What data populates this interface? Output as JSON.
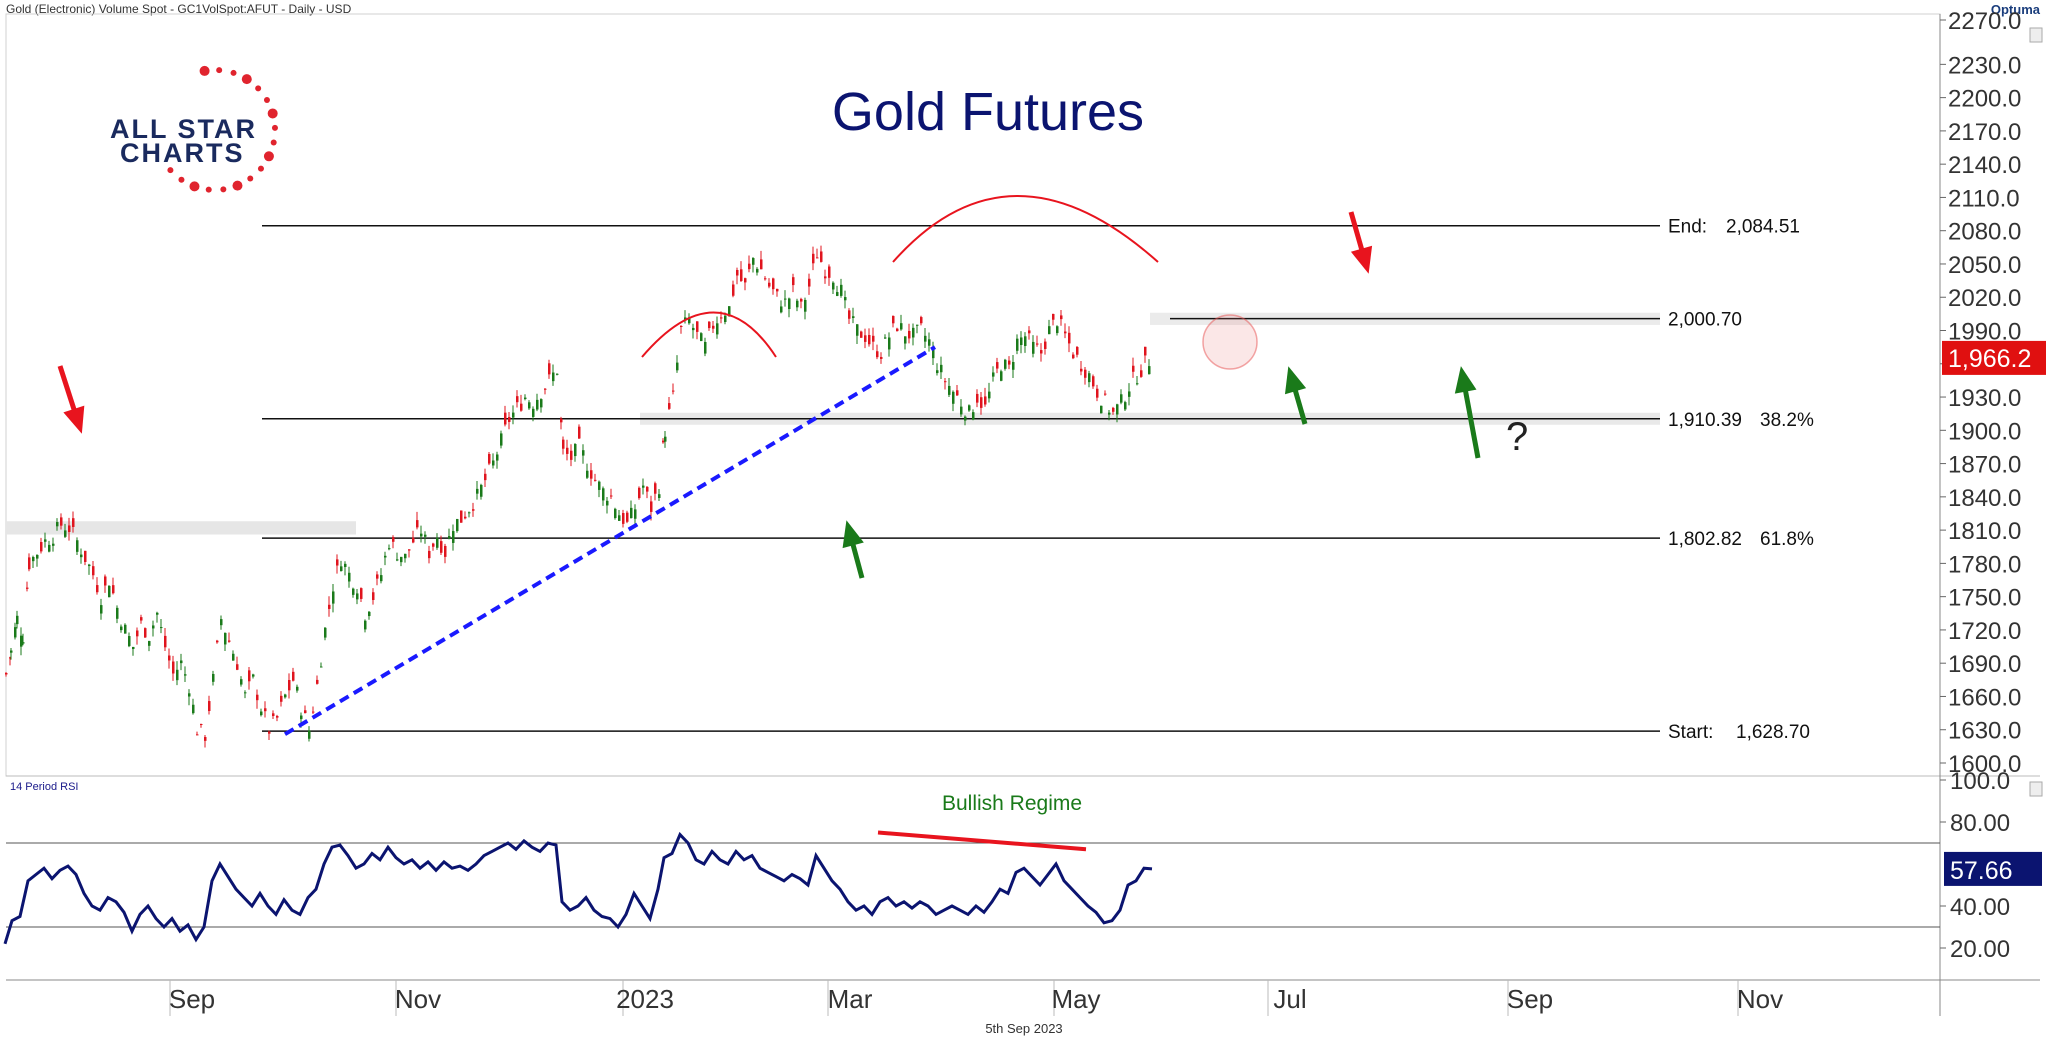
{
  "header": {
    "instrument": "Gold (Electronic) Volume Spot - GC1VolSpot:AFUT - Daily - USD",
    "brand": "Optuma"
  },
  "logo": {
    "line1": "ALL STAR",
    "line2": "CHARTS"
  },
  "footer": {
    "date": "5th Sep 2023"
  },
  "colors": {
    "up": "#1a7a1a",
    "down": "#e0141e",
    "navy": "#0b1470",
    "trend": "#1a1aff",
    "annot_red": "#e8141e",
    "annot_green": "#1a7a1a"
  },
  "chart_data": [
    {
      "type": "candlestick",
      "title": "Gold Futures",
      "ylim": [
        1600,
        2280
      ],
      "y_ticks": [
        "2270.0",
        "2230.0",
        "2200.0",
        "2170.0",
        "2140.0",
        "2110.0",
        "2080.0",
        "2050.0",
        "2020.0",
        "1990.0",
        "1960.0",
        "1930.0",
        "1900.0",
        "1870.0",
        "1840.0",
        "1810.0",
        "1780.0",
        "1750.0",
        "1720.0",
        "1690.0",
        "1660.0",
        "1630.0",
        "1600.0"
      ],
      "x_ticks": [
        "Sep",
        "Nov",
        "2023",
        "Mar",
        "May",
        "Jul",
        "Sep",
        "Nov"
      ],
      "last_price": "1,966.2",
      "fib_levels": [
        {
          "label": "End:",
          "value": "2,084.51",
          "price": 2084.51,
          "pct": ""
        },
        {
          "label": "",
          "value": "2,000.70",
          "price": 2000.7,
          "pct": ""
        },
        {
          "label": "",
          "value": "1,910.39",
          "price": 1910.39,
          "pct": "38.2%"
        },
        {
          "label": "",
          "value": "1,802.82",
          "price": 1802.82,
          "pct": "61.8%"
        },
        {
          "label": "Start:",
          "value": "1,628.70",
          "price": 1628.7,
          "pct": ""
        }
      ],
      "trend_line": {
        "from": [
          285,
          1626
        ],
        "to": [
          935,
          1975
        ]
      },
      "annotation_question": "?",
      "close_path": [
        [
          5,
          1680
        ],
        [
          10,
          1700
        ],
        [
          16,
          1730
        ],
        [
          22,
          1715
        ],
        [
          28,
          1780
        ],
        [
          36,
          1790
        ],
        [
          44,
          1800
        ],
        [
          52,
          1805
        ],
        [
          60,
          1815
        ],
        [
          68,
          1812
        ],
        [
          76,
          1800
        ],
        [
          84,
          1785
        ],
        [
          92,
          1770
        ],
        [
          100,
          1750
        ],
        [
          108,
          1765
        ],
        [
          116,
          1740
        ],
        [
          124,
          1720
        ],
        [
          132,
          1705
        ],
        [
          140,
          1725
        ],
        [
          148,
          1715
        ],
        [
          156,
          1735
        ],
        [
          164,
          1705
        ],
        [
          172,
          1680
        ],
        [
          180,
          1690
        ],
        [
          188,
          1670
        ],
        [
          196,
          1630
        ],
        [
          204,
          1625
        ],
        [
          212,
          1675
        ],
        [
          220,
          1730
        ],
        [
          228,
          1710
        ],
        [
          236,
          1690
        ],
        [
          244,
          1660
        ],
        [
          252,
          1675
        ],
        [
          260,
          1650
        ],
        [
          268,
          1630
        ],
        [
          276,
          1640
        ],
        [
          284,
          1660
        ],
        [
          292,
          1675
        ],
        [
          300,
          1650
        ],
        [
          308,
          1630
        ],
        [
          316,
          1670
        ],
        [
          324,
          1720
        ],
        [
          332,
          1760
        ],
        [
          340,
          1785
        ],
        [
          348,
          1770
        ],
        [
          356,
          1760
        ],
        [
          364,
          1735
        ],
        [
          372,
          1750
        ],
        [
          380,
          1770
        ],
        [
          388,
          1800
        ],
        [
          396,
          1790
        ],
        [
          404,
          1785
        ],
        [
          412,
          1800
        ],
        [
          420,
          1810
        ],
        [
          428,
          1790
        ],
        [
          436,
          1805
        ],
        [
          444,
          1790
        ],
        [
          452,
          1815
        ],
        [
          460,
          1820
        ],
        [
          468,
          1830
        ],
        [
          476,
          1840
        ],
        [
          484,
          1855
        ],
        [
          492,
          1870
        ],
        [
          500,
          1890
        ],
        [
          508,
          1910
        ],
        [
          516,
          1920
        ],
        [
          524,
          1930
        ],
        [
          532,
          1925
        ],
        [
          540,
          1935
        ],
        [
          548,
          1945
        ],
        [
          556,
          1955
        ],
        [
          562,
          1880
        ],
        [
          570,
          1875
        ],
        [
          578,
          1885
        ],
        [
          586,
          1870
        ],
        [
          594,
          1855
        ],
        [
          602,
          1845
        ],
        [
          610,
          1840
        ],
        [
          618,
          1825
        ],
        [
          626,
          1815
        ],
        [
          634,
          1830
        ],
        [
          642,
          1850
        ],
        [
          650,
          1830
        ],
        [
          658,
          1850
        ],
        [
          664,
          1900
        ],
        [
          672,
          1930
        ],
        [
          680,
          1990
        ],
        [
          688,
          2000
        ],
        [
          696,
          1985
        ],
        [
          704,
          1975
        ],
        [
          712,
          1995
        ],
        [
          720,
          2005
        ],
        [
          728,
          2010
        ],
        [
          736,
          2040
        ],
        [
          744,
          2030
        ],
        [
          752,
          2055
        ],
        [
          760,
          2045
        ],
        [
          768,
          2030
        ],
        [
          776,
          2020
        ],
        [
          784,
          2015
        ],
        [
          792,
          2025
        ],
        [
          800,
          2010
        ],
        [
          808,
          2030
        ],
        [
          816,
          2060
        ],
        [
          824,
          2045
        ],
        [
          832,
          2040
        ],
        [
          840,
          2025
        ],
        [
          848,
          2000
        ],
        [
          856,
          1990
        ],
        [
          864,
          1985
        ],
        [
          872,
          1975
        ],
        [
          880,
          1970
        ],
        [
          888,
          1985
        ],
        [
          896,
          1995
        ],
        [
          904,
          1988
        ],
        [
          912,
          1985
        ],
        [
          920,
          1990
        ],
        [
          928,
          1980
        ],
        [
          936,
          1960
        ],
        [
          944,
          1945
        ],
        [
          952,
          1935
        ],
        [
          960,
          1925
        ],
        [
          968,
          1915
        ],
        [
          976,
          1930
        ],
        [
          984,
          1920
        ],
        [
          992,
          1945
        ],
        [
          1000,
          1960
        ],
        [
          1008,
          1955
        ],
        [
          1016,
          1980
        ],
        [
          1024,
          1985
        ],
        [
          1032,
          1975
        ],
        [
          1040,
          1970
        ],
        [
          1048,
          1990
        ],
        [
          1056,
          2000
        ],
        [
          1064,
          1985
        ],
        [
          1072,
          1970
        ],
        [
          1080,
          1960
        ],
        [
          1088,
          1950
        ],
        [
          1096,
          1935
        ],
        [
          1104,
          1925
        ],
        [
          1112,
          1915
        ],
        [
          1120,
          1925
        ],
        [
          1128,
          1940
        ],
        [
          1136,
          1950
        ],
        [
          1144,
          1960
        ],
        [
          1152,
          1966
        ]
      ]
    },
    {
      "type": "line",
      "title": "14 Period RSI",
      "annotation": "Bullish Regime",
      "ylim": [
        10,
        100
      ],
      "y_ticks": [
        "100.0",
        "80.00",
        "40.00",
        "20.00"
      ],
      "bands": [
        70,
        30
      ],
      "last_value": "57.66",
      "values": [
        [
          5,
          22
        ],
        [
          12,
          33
        ],
        [
          20,
          35
        ],
        [
          28,
          52
        ],
        [
          36,
          55
        ],
        [
          44,
          58
        ],
        [
          52,
          53
        ],
        [
          60,
          57
        ],
        [
          68,
          59
        ],
        [
          76,
          55
        ],
        [
          84,
          46
        ],
        [
          92,
          40
        ],
        [
          100,
          38
        ],
        [
          108,
          44
        ],
        [
          116,
          42
        ],
        [
          124,
          37
        ],
        [
          132,
          28
        ],
        [
          140,
          36
        ],
        [
          148,
          40
        ],
        [
          156,
          34
        ],
        [
          164,
          30
        ],
        [
          172,
          34
        ],
        [
          180,
          28
        ],
        [
          188,
          31
        ],
        [
          196,
          24
        ],
        [
          204,
          30
        ],
        [
          212,
          52
        ],
        [
          220,
          60
        ],
        [
          228,
          54
        ],
        [
          236,
          48
        ],
        [
          244,
          44
        ],
        [
          252,
          40
        ],
        [
          260,
          46
        ],
        [
          268,
          40
        ],
        [
          276,
          36
        ],
        [
          284,
          43
        ],
        [
          292,
          38
        ],
        [
          300,
          36
        ],
        [
          308,
          44
        ],
        [
          316,
          48
        ],
        [
          324,
          60
        ],
        [
          332,
          68
        ],
        [
          340,
          69
        ],
        [
          348,
          64
        ],
        [
          356,
          58
        ],
        [
          364,
          60
        ],
        [
          372,
          65
        ],
        [
          380,
          62
        ],
        [
          388,
          68
        ],
        [
          396,
          63
        ],
        [
          404,
          60
        ],
        [
          412,
          62
        ],
        [
          420,
          58
        ],
        [
          428,
          61
        ],
        [
          436,
          57
        ],
        [
          444,
          61
        ],
        [
          452,
          58
        ],
        [
          460,
          59
        ],
        [
          468,
          57
        ],
        [
          476,
          60
        ],
        [
          484,
          64
        ],
        [
          492,
          66
        ],
        [
          500,
          68
        ],
        [
          508,
          70
        ],
        [
          516,
          67
        ],
        [
          524,
          71
        ],
        [
          532,
          68
        ],
        [
          540,
          66
        ],
        [
          548,
          70
        ],
        [
          556,
          69
        ],
        [
          562,
          42
        ],
        [
          570,
          38
        ],
        [
          578,
          40
        ],
        [
          586,
          44
        ],
        [
          594,
          38
        ],
        [
          602,
          35
        ],
        [
          610,
          34
        ],
        [
          618,
          30
        ],
        [
          626,
          36
        ],
        [
          634,
          46
        ],
        [
          642,
          40
        ],
        [
          650,
          34
        ],
        [
          658,
          48
        ],
        [
          664,
          63
        ],
        [
          672,
          65
        ],
        [
          680,
          74
        ],
        [
          688,
          70
        ],
        [
          696,
          62
        ],
        [
          704,
          60
        ],
        [
          712,
          66
        ],
        [
          720,
          62
        ],
        [
          728,
          60
        ],
        [
          736,
          66
        ],
        [
          744,
          62
        ],
        [
          752,
          64
        ],
        [
          760,
          58
        ],
        [
          768,
          56
        ],
        [
          776,
          54
        ],
        [
          784,
          52
        ],
        [
          792,
          55
        ],
        [
          800,
          53
        ],
        [
          808,
          50
        ],
        [
          816,
          64
        ],
        [
          824,
          58
        ],
        [
          832,
          52
        ],
        [
          840,
          48
        ],
        [
          848,
          42
        ],
        [
          856,
          38
        ],
        [
          864,
          40
        ],
        [
          872,
          36
        ],
        [
          880,
          42
        ],
        [
          888,
          44
        ],
        [
          896,
          40
        ],
        [
          904,
          42
        ],
        [
          912,
          39
        ],
        [
          920,
          42
        ],
        [
          928,
          40
        ],
        [
          936,
          36
        ],
        [
          944,
          38
        ],
        [
          952,
          40
        ],
        [
          960,
          38
        ],
        [
          968,
          36
        ],
        [
          976,
          40
        ],
        [
          984,
          37
        ],
        [
          992,
          42
        ],
        [
          1000,
          48
        ],
        [
          1008,
          46
        ],
        [
          1016,
          56
        ],
        [
          1024,
          58
        ],
        [
          1032,
          54
        ],
        [
          1040,
          50
        ],
        [
          1048,
          55
        ],
        [
          1056,
          60
        ],
        [
          1064,
          52
        ],
        [
          1072,
          48
        ],
        [
          1080,
          44
        ],
        [
          1088,
          40
        ],
        [
          1096,
          37
        ],
        [
          1104,
          32
        ],
        [
          1112,
          33
        ],
        [
          1120,
          38
        ],
        [
          1128,
          50
        ],
        [
          1136,
          52
        ],
        [
          1144,
          58
        ],
        [
          1152,
          57.66
        ]
      ]
    }
  ]
}
